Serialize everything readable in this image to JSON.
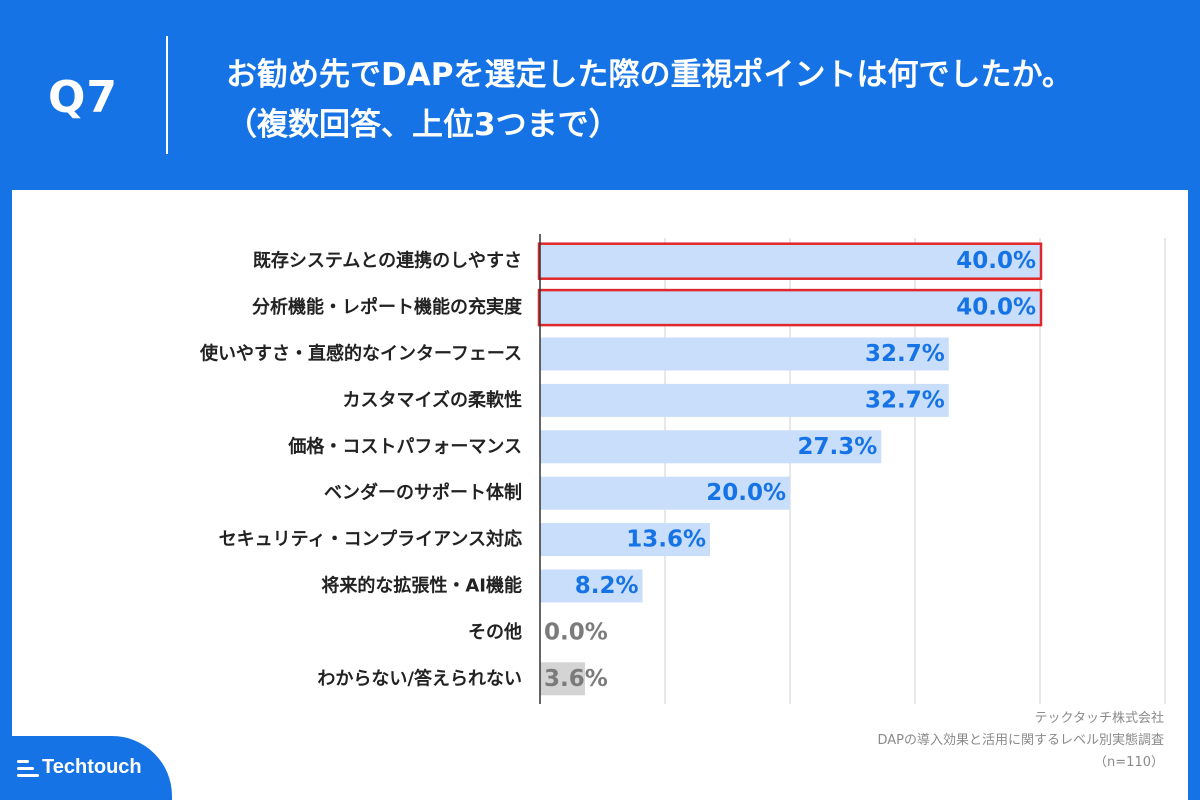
{
  "header": {
    "question_label": "Q7",
    "title_line1": "お勧め先でDAPを選定した際の重視ポイントは何でしたか。",
    "title_line2": "（複数回答、上位3つまで）"
  },
  "footer": {
    "brand": "Techtouch",
    "source_line1": "テックタッチ株式会社",
    "source_line2": "DAPの導入効果と活用に関するレベル別実態調査",
    "source_line3": "（n=110）"
  },
  "colors": {
    "background": "#1673e6",
    "bar_fill": "#c8defa",
    "bar_fill_other": "#d4d4d4",
    "value_label": "#1673e6",
    "value_label_other": "#7b7b7b",
    "highlight_border": "#e0282c",
    "grid": "#d0d0d0",
    "axis": "#333333"
  },
  "chart_data": {
    "type": "bar",
    "orientation": "horizontal",
    "categories": [
      "既存システムとの連携のしやすさ",
      "分析機能・レポート機能の充実度",
      "使いやすさ・直感的なインターフェース",
      "カスタマイズの柔軟性",
      "価格・コストパフォーマンス",
      "ベンダーのサポート体制",
      "セキュリティ・コンプライアンス対応",
      "将来的な拡張性・AI機能",
      "その他",
      "わからない/答えられない"
    ],
    "values": [
      40.0,
      40.0,
      32.7,
      32.7,
      27.3,
      20.0,
      13.6,
      8.2,
      0.0,
      3.6
    ],
    "value_labels": [
      "40.0%",
      "40.0%",
      "32.7%",
      "32.7%",
      "27.3%",
      "20.0%",
      "13.6%",
      "8.2%",
      "0.0%",
      "3.6%"
    ],
    "highlighted": [
      true,
      true,
      false,
      false,
      false,
      false,
      false,
      false,
      false,
      false
    ],
    "muted": [
      false,
      false,
      false,
      false,
      false,
      false,
      false,
      false,
      true,
      true
    ],
    "xlim": [
      0,
      50
    ],
    "grid": true
  }
}
